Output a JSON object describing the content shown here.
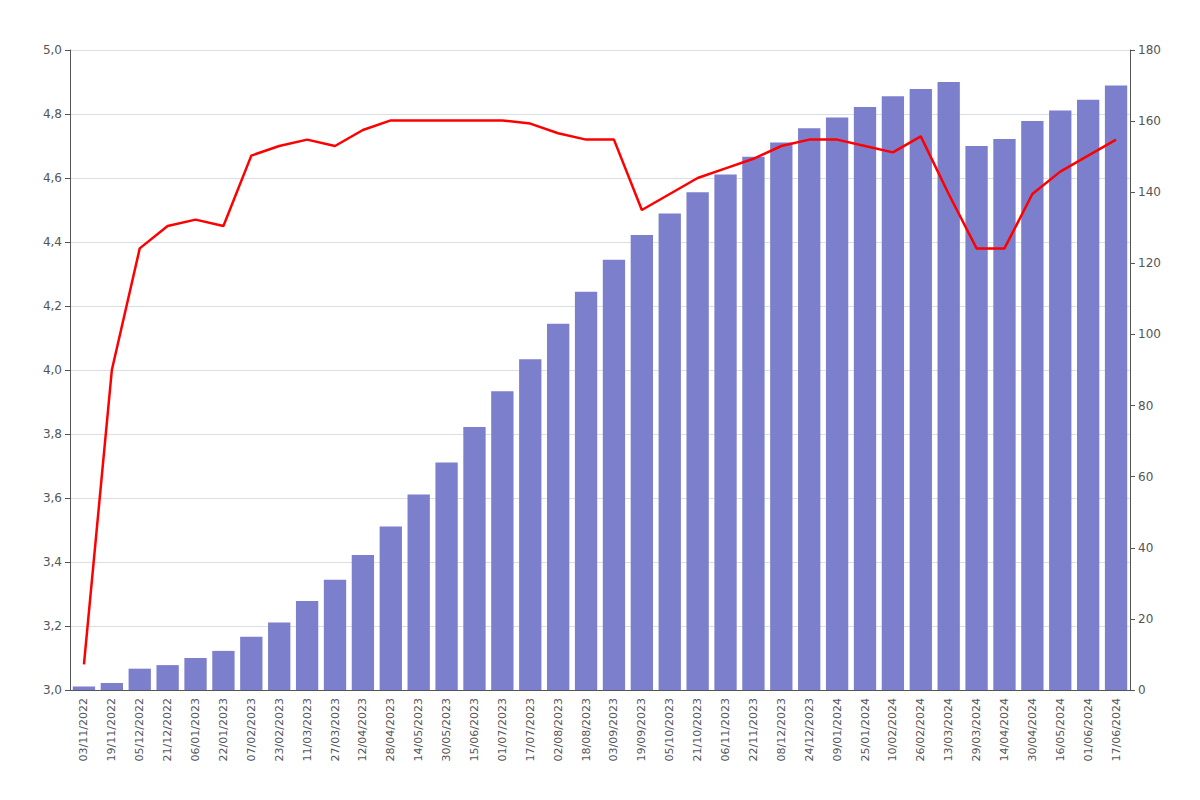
{
  "chart_data": {
    "type": "bar",
    "categories": [
      "03/11/2022",
      "19/11/2022",
      "05/12/2022",
      "21/12/2022",
      "06/01/2023",
      "22/01/2023",
      "07/02/2023",
      "23/02/2023",
      "11/03/2023",
      "27/03/2023",
      "12/04/2023",
      "28/04/2023",
      "14/05/2023",
      "30/05/2023",
      "15/06/2023",
      "01/07/2023",
      "17/07/2023",
      "02/08/2023",
      "18/08/2023",
      "03/09/2023",
      "19/09/2023",
      "05/10/2023",
      "21/10/2023",
      "06/11/2023",
      "22/11/2023",
      "08/12/2023",
      "24/12/2023",
      "09/01/2024",
      "25/01/2024",
      "10/02/2024",
      "26/02/2024",
      "13/03/2024",
      "29/03/2024",
      "14/04/2024",
      "30/04/2024",
      "16/05/2024",
      "01/06/2024",
      "17/06/2024"
    ],
    "series": [
      {
        "type": "bar",
        "color": "#7b7fcc",
        "axis": "y2",
        "values": [
          1,
          2,
          6,
          7,
          9,
          11,
          15,
          19,
          25,
          31,
          38,
          46,
          55,
          64,
          74,
          84,
          93,
          103,
          112,
          121,
          128,
          134,
          140,
          145,
          150,
          154,
          158,
          161,
          164,
          167,
          169,
          171,
          153,
          155,
          160,
          163,
          166,
          170
        ]
      },
      {
        "type": "line",
        "color": "#ff0000",
        "values": [
          3.08,
          4.0,
          4.38,
          4.45,
          4.47,
          4.45,
          4.67,
          4.7,
          4.72,
          4.7,
          4.75,
          4.78,
          4.78,
          4.78,
          4.78,
          4.78,
          4.77,
          4.74,
          4.72,
          4.72,
          4.5,
          4.55,
          4.6,
          4.63,
          4.66,
          4.7,
          4.72,
          4.72,
          4.7,
          4.68,
          4.73,
          4.55,
          4.38,
          4.38,
          4.55,
          4.62,
          4.67,
          4.72
        ]
      }
    ],
    "ylim": [
      3.0,
      5.0
    ],
    "yticks": [
      {
        "value": 3.0,
        "label": "3,0"
      },
      {
        "value": 3.2,
        "label": "3,2"
      },
      {
        "value": 3.4,
        "label": "3,4"
      },
      {
        "value": 3.6,
        "label": "3,6"
      },
      {
        "value": 3.8,
        "label": "3,8"
      },
      {
        "value": 4.0,
        "label": "4,0"
      },
      {
        "value": 4.2,
        "label": "4,2"
      },
      {
        "value": 4.4,
        "label": "4,4"
      },
      {
        "value": 4.6,
        "label": "4,6"
      },
      {
        "value": 4.8,
        "label": "4,8"
      },
      {
        "value": 5.0,
        "label": "5,0"
      }
    ],
    "y2lim": [
      0,
      180
    ],
    "y2ticks": [
      0,
      20,
      40,
      60,
      80,
      100,
      120,
      140,
      160,
      180
    ],
    "grid": true
  }
}
